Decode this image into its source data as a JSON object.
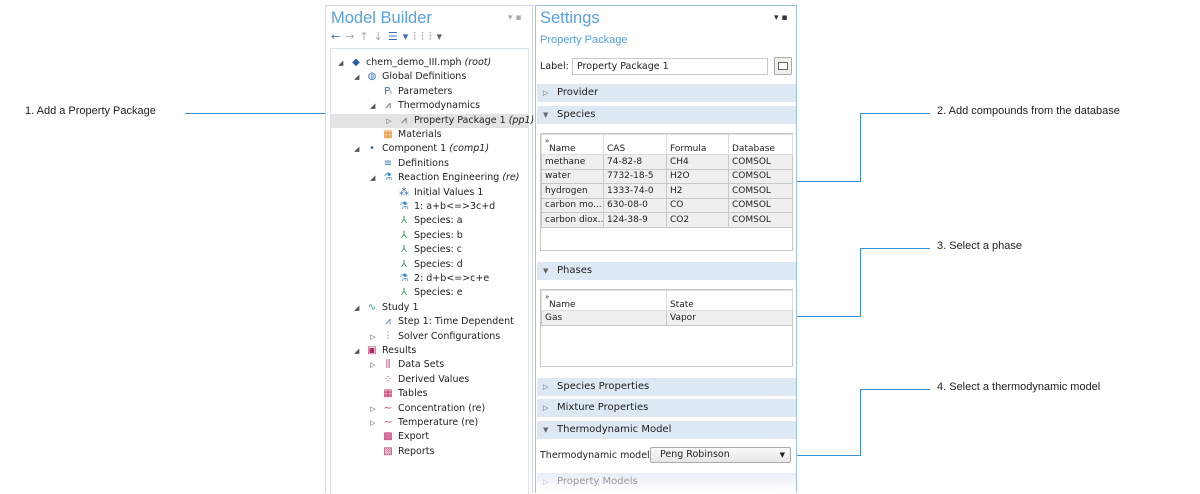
{
  "model_builder": {
    "title": "Model Builder",
    "tree": [
      {
        "level": 0,
        "toggle": "open",
        "icon": "file-root-icon",
        "label": "chem_demo_III.mph",
        "tag": "(root)"
      },
      {
        "level": 1,
        "toggle": "open",
        "icon": "globe-icon",
        "label": "Global Definitions"
      },
      {
        "level": 2,
        "toggle": "",
        "icon": "parameters-icon",
        "label": "Parameters"
      },
      {
        "level": 2,
        "toggle": "open",
        "icon": "thermodynamics-icon",
        "label": "Thermodynamics"
      },
      {
        "level": 3,
        "toggle": "closed",
        "icon": "thermodynamics-icon",
        "label": "Property Package 1",
        "tag": "(pp1)",
        "selected": true
      },
      {
        "level": 2,
        "toggle": "",
        "icon": "materials-icon",
        "label": "Materials"
      },
      {
        "level": 1,
        "toggle": "open",
        "icon": "component-icon",
        "label": "Component 1",
        "tag": "(comp1)"
      },
      {
        "level": 2,
        "toggle": "",
        "icon": "definitions-icon",
        "label": "Definitions"
      },
      {
        "level": 2,
        "toggle": "open",
        "icon": "flask-icon",
        "label": "Reaction Engineering",
        "tag": "(re)"
      },
      {
        "level": 3,
        "toggle": "",
        "icon": "initial-values-icon",
        "label": "Initial Values 1"
      },
      {
        "level": 3,
        "toggle": "",
        "icon": "flask-icon",
        "label": "1: a+b<=>3c+d"
      },
      {
        "level": 3,
        "toggle": "",
        "icon": "species-icon",
        "label": "Species: a"
      },
      {
        "level": 3,
        "toggle": "",
        "icon": "species-icon",
        "label": "Species: b"
      },
      {
        "level": 3,
        "toggle": "",
        "icon": "species-icon",
        "label": "Species: c"
      },
      {
        "level": 3,
        "toggle": "",
        "icon": "species-icon",
        "label": "Species: d"
      },
      {
        "level": 3,
        "toggle": "",
        "icon": "flask-icon",
        "label": "2: d+b<=>c+e"
      },
      {
        "level": 3,
        "toggle": "",
        "icon": "species-icon",
        "label": "Species: e"
      },
      {
        "level": 1,
        "toggle": "open",
        "icon": "study-icon",
        "label": "Study 1"
      },
      {
        "level": 2,
        "toggle": "",
        "icon": "time-dependent-icon",
        "label": "Step 1: Time Dependent"
      },
      {
        "level": 2,
        "toggle": "closed",
        "icon": "solver-icon",
        "label": "Solver Configurations"
      },
      {
        "level": 1,
        "toggle": "open",
        "icon": "results-icon",
        "label": "Results"
      },
      {
        "level": 2,
        "toggle": "closed",
        "icon": "data-sets-icon",
        "label": "Data Sets"
      },
      {
        "level": 2,
        "toggle": "",
        "icon": "derived-values-icon",
        "label": "Derived Values"
      },
      {
        "level": 2,
        "toggle": "",
        "icon": "tables-icon",
        "label": "Tables"
      },
      {
        "level": 2,
        "toggle": "closed",
        "icon": "plot-icon",
        "label": "Concentration (re)"
      },
      {
        "level": 2,
        "toggle": "closed",
        "icon": "plot-icon",
        "label": "Temperature (re)"
      },
      {
        "level": 2,
        "toggle": "",
        "icon": "export-icon",
        "label": "Export"
      },
      {
        "level": 2,
        "toggle": "",
        "icon": "reports-icon",
        "label": "Reports"
      }
    ]
  },
  "settings": {
    "title": "Settings",
    "subtitle": "Property Package",
    "label_caption": "Label:",
    "label_value": "Property Package 1",
    "sections": {
      "provider": "Provider",
      "species": "Species",
      "phases": "Phases",
      "species_properties": "Species Properties",
      "mixture_properties": "Mixture Properties",
      "thermo_model": "Thermodynamic Model",
      "property_models": "Property Models"
    },
    "species_table": {
      "columns": [
        "Name",
        "CAS",
        "Formula",
        "Database"
      ],
      "rows": [
        [
          "methane",
          "74-82-8",
          "CH4",
          "COMSOL"
        ],
        [
          "water",
          "7732-18-5",
          "H2O",
          "COMSOL"
        ],
        [
          "hydrogen",
          "1333-74-0",
          "H2",
          "COMSOL"
        ],
        [
          "carbon mo...",
          "630-08-0",
          "CO",
          "COMSOL"
        ],
        [
          "carbon diox...",
          "124-38-9",
          "CO2",
          "COMSOL"
        ]
      ]
    },
    "phases_table": {
      "columns": [
        "Name",
        "State"
      ],
      "rows": [
        [
          "Gas",
          "Vapor"
        ]
      ]
    },
    "thermo_model_caption": "Thermodynamic model:",
    "thermo_model_value": "Peng Robinson"
  },
  "callouts": [
    "1. Add a Property Package",
    "2. Add compounds from the database",
    "3. Select a phase",
    "4. Select a thermodynamic model"
  ],
  "colors": {
    "accent": "#5aa0dc",
    "callout_line": "#3a8fd6",
    "section_bg": "#dde8f3"
  }
}
